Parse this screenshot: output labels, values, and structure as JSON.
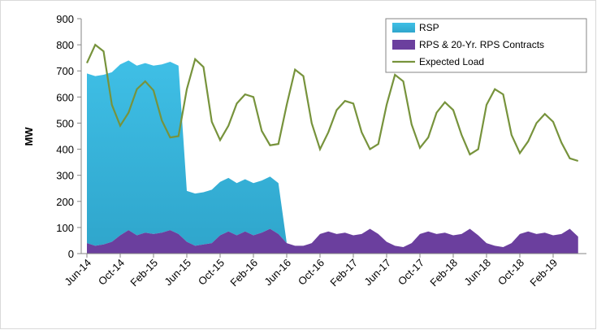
{
  "chart_data": {
    "type": "area",
    "stacked": true,
    "ylabel": "MW",
    "categories": [
      "Jun-14",
      null,
      null,
      null,
      "Oct-14",
      null,
      null,
      null,
      "Feb-15",
      null,
      null,
      null,
      "Jun-15",
      null,
      null,
      null,
      "Oct-15",
      null,
      null,
      null,
      "Feb-16",
      null,
      null,
      null,
      "Jun-16",
      null,
      null,
      null,
      "Oct-16",
      null,
      null,
      null,
      "Feb-17",
      null,
      null,
      null,
      "Jun-17",
      null,
      null,
      null,
      "Oct-17",
      null,
      null,
      null,
      "Feb-18",
      null,
      null,
      null,
      "Jun-18",
      null,
      null,
      null,
      "Oct-18",
      null,
      null,
      null,
      "Feb-19",
      null,
      null,
      null
    ],
    "series": [
      {
        "name": "RSP",
        "type": "area",
        "color": "#2fa6cc",
        "values": [
          650,
          650,
          650,
          650,
          655,
          650,
          650,
          650,
          645,
          645,
          645,
          645,
          195,
          200,
          200,
          205,
          205,
          205,
          200,
          200,
          200,
          200,
          200,
          195,
          0,
          0,
          0,
          0,
          0,
          0,
          0,
          0,
          0,
          0,
          0,
          0,
          0,
          0,
          0,
          0,
          0,
          0,
          0,
          0,
          0,
          0,
          0,
          0,
          0,
          0,
          0,
          0,
          0,
          0,
          0,
          0,
          0,
          0,
          0,
          0
        ]
      },
      {
        "name": "RPS & 20-Yr. RPS Contracts",
        "type": "area",
        "color": "#6b3f9e",
        "values": [
          40,
          30,
          35,
          45,
          70,
          90,
          70,
          80,
          75,
          80,
          90,
          75,
          45,
          30,
          35,
          40,
          70,
          85,
          70,
          85,
          70,
          80,
          95,
          75,
          40,
          30,
          30,
          40,
          75,
          85,
          75,
          80,
          70,
          75,
          95,
          75,
          45,
          30,
          25,
          40,
          75,
          85,
          75,
          80,
          70,
          75,
          95,
          70,
          40,
          30,
          25,
          40,
          75,
          85,
          75,
          80,
          70,
          75,
          95,
          65
        ]
      },
      {
        "name": "Expected Load",
        "type": "line",
        "color": "#77933c",
        "values": [
          730,
          800,
          775,
          570,
          490,
          540,
          630,
          660,
          625,
          510,
          445,
          450,
          630,
          745,
          715,
          505,
          435,
          490,
          575,
          610,
          600,
          470,
          415,
          420,
          570,
          705,
          680,
          500,
          400,
          465,
          550,
          585,
          575,
          465,
          400,
          420,
          570,
          685,
          660,
          495,
          405,
          445,
          540,
          580,
          550,
          455,
          380,
          400,
          570,
          630,
          610,
          455,
          385,
          430,
          500,
          535,
          505,
          425,
          365,
          355
        ]
      }
    ],
    "ylim": [
      0,
      900
    ],
    "yticks": [
      0,
      100,
      200,
      300,
      400,
      500,
      600,
      700,
      800,
      900
    ],
    "legend": "top-right"
  }
}
